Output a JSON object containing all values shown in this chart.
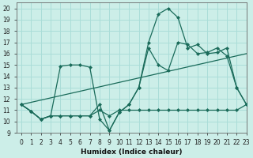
{
  "x": [
    0,
    1,
    2,
    3,
    4,
    5,
    6,
    7,
    8,
    9,
    10,
    11,
    12,
    13,
    14,
    15,
    16,
    17,
    18,
    19,
    20,
    21,
    22,
    23
  ],
  "line_main": [
    11.5,
    10.9,
    10.2,
    10.5,
    10.5,
    10.5,
    10.5,
    10.5,
    11.5,
    9.2,
    10.8,
    11.5,
    13.0,
    17.0,
    19.5,
    20.0,
    19.2,
    16.5,
    16.8,
    16.0,
    16.1,
    16.5,
    13.0,
    11.5
  ],
  "line_zigzag": [
    11.5,
    10.9,
    10.2,
    10.5,
    14.9,
    15.0,
    15.0,
    14.8,
    10.2,
    9.2,
    10.8,
    11.5,
    13.0,
    16.5,
    15.0,
    14.5,
    17.0,
    16.8,
    16.0,
    16.1,
    16.5,
    15.8,
    13.0,
    11.5
  ],
  "line_flat": [
    11.5,
    10.9,
    10.2,
    10.5,
    10.5,
    10.5,
    10.5,
    10.5,
    11.0,
    10.5,
    11.0,
    11.0,
    11.0,
    11.0,
    11.0,
    11.0,
    11.0,
    11.0,
    11.0,
    11.0,
    11.0,
    11.0,
    11.0,
    11.5
  ],
  "line_trend_x": [
    0,
    23
  ],
  "line_trend_y": [
    11.5,
    16.0
  ],
  "color": "#1a6b5a",
  "bg_color": "#cceee8",
  "grid_color": "#aaddd8",
  "xlabel": "Humidex (Indice chaleur)",
  "ylim": [
    9,
    20.5
  ],
  "xlim": [
    -0.5,
    23
  ],
  "yticks": [
    9,
    10,
    11,
    12,
    13,
    14,
    15,
    16,
    17,
    18,
    19,
    20
  ],
  "xticks": [
    0,
    1,
    2,
    3,
    4,
    5,
    6,
    7,
    8,
    9,
    10,
    11,
    12,
    13,
    14,
    15,
    16,
    17,
    18,
    19,
    20,
    21,
    22,
    23
  ],
  "marker_size": 2.0,
  "line_width": 0.9
}
